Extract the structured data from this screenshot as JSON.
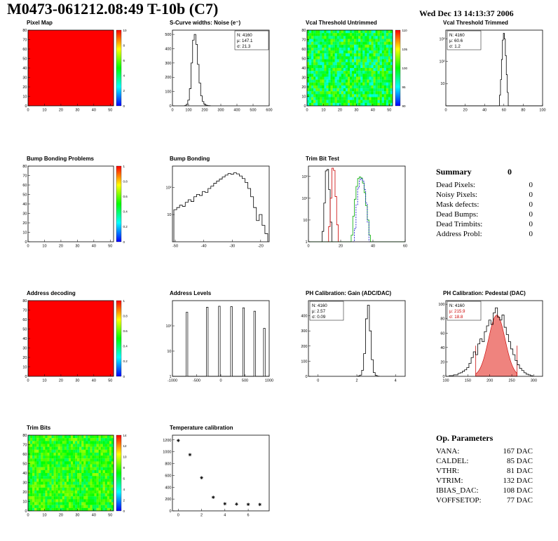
{
  "header": {
    "title": "M0473-061212.08:49 T-10b (C7)",
    "datetime": "Wed Dec 13 14:13:37 2006"
  },
  "summary": {
    "title": "Summary",
    "total": "0",
    "rows": [
      {
        "label": "Dead Pixels:",
        "value": "0"
      },
      {
        "label": "Noisy Pixels:",
        "value": "0"
      },
      {
        "label": "Mask defects:",
        "value": "0"
      },
      {
        "label": "Dead Bumps:",
        "value": "0"
      },
      {
        "label": "Dead Trimbits:",
        "value": "0"
      },
      {
        "label": "Address Probl:",
        "value": "0"
      }
    ]
  },
  "op_parameters": {
    "title": "Op. Parameters",
    "rows": [
      {
        "label": "VANA:",
        "value": "167 DAC"
      },
      {
        "label": "CALDEL:",
        "value": "85 DAC"
      },
      {
        "label": "VTHR:",
        "value": "81 DAC"
      },
      {
        "label": "VTRIM:",
        "value": "132 DAC"
      },
      {
        "label": "IBIAS_DAC:",
        "value": "108 DAC"
      },
      {
        "label": "VOFFSETOP:",
        "value": "77 DAC"
      }
    ]
  },
  "chart_data": [
    {
      "id": "pixel-map",
      "title": "Pixel Map",
      "type": "heatmap",
      "kind": "heatmap",
      "x_range": [
        0,
        52
      ],
      "x_ticks": [
        0,
        10,
        20,
        30,
        40,
        50
      ],
      "y_range": [
        0,
        80
      ],
      "y_ticks": [
        0,
        10,
        20,
        30,
        40,
        50,
        60,
        70,
        80
      ],
      "uniform": 1.0,
      "cticks": [
        "10",
        "8",
        "6",
        "4",
        "2",
        "0"
      ]
    },
    {
      "id": "scurve-noise",
      "title": "S-Curve widths: Noise (e⁻)",
      "type": "bar",
      "kind": "hist",
      "log": false,
      "x_range": [
        0,
        600
      ],
      "x_ticks": [
        0,
        100,
        200,
        300,
        400,
        500,
        600
      ],
      "y_range": [
        0,
        530
      ],
      "y_ticks": [
        0,
        100,
        200,
        300,
        400,
        500
      ],
      "x0": 80,
      "dx": 10,
      "ys": [
        2,
        10,
        40,
        120,
        300,
        460,
        500,
        430,
        290,
        160,
        70,
        30,
        12,
        5,
        2,
        1
      ],
      "stats": [
        [
          "N: 4160",
          "#000"
        ],
        [
          "μ: 147.1",
          "#000"
        ],
        [
          "σ: 21.3",
          "#000"
        ]
      ],
      "stats_pos": "right"
    },
    {
      "id": "vcal-untrimmed",
      "title": "Vcal Threshold Untrimmed",
      "type": "heatmap",
      "kind": "heatmap",
      "x_range": [
        0,
        52
      ],
      "x_ticks": [
        0,
        10,
        20,
        30,
        40,
        50
      ],
      "y_range": [
        0,
        80
      ],
      "y_ticks": [
        0,
        10,
        20,
        30,
        40,
        50,
        60,
        70,
        80
      ],
      "noise": {
        "mean": 0.45,
        "spread": 0.18,
        "seed": 42
      },
      "cticks": [
        "110",
        "105",
        "100",
        "95",
        "90"
      ]
    },
    {
      "id": "vcal-trimmed",
      "title": "Vcal Threshold Trimmed",
      "type": "bar",
      "kind": "hist",
      "log": true,
      "x_range": [
        0,
        100
      ],
      "x_ticks": [
        0,
        20,
        40,
        60,
        80,
        100
      ],
      "y_range": [
        1,
        2500
      ],
      "y_labels": [
        10,
        100,
        1000
      ],
      "x0": 55,
      "dx": 1,
      "ys": [
        1,
        3,
        15,
        120,
        900,
        1800,
        1000,
        180,
        25,
        4,
        1
      ],
      "extend": true,
      "stats": [
        [
          "N: 4160",
          "#000"
        ],
        [
          "μ: 60.6",
          "#000"
        ],
        [
          "σ: 1.2",
          "#000"
        ]
      ],
      "stats_pos": "left"
    },
    {
      "id": "bump-bonding-problems",
      "title": "Bump Bonding Problems",
      "type": "heatmap",
      "kind": "heatmap",
      "x_range": [
        0,
        52
      ],
      "x_ticks": [
        0,
        10,
        20,
        30,
        40,
        50
      ],
      "y_range": [
        0,
        80
      ],
      "y_ticks": [
        0,
        10,
        20,
        30,
        40,
        50,
        60,
        70,
        80
      ],
      "uniform": null,
      "cticks": [
        "1",
        "0.8",
        "0.6",
        "0.4",
        "0.2",
        "0"
      ]
    },
    {
      "id": "bump-bonding",
      "title": "Bump Bonding",
      "type": "bar",
      "kind": "hist",
      "log": true,
      "x_range": [
        -51,
        -17
      ],
      "x_ticks": [
        -50,
        -40,
        -30,
        -20
      ],
      "y_range": [
        1,
        600
      ],
      "y_labels": [
        10,
        100
      ],
      "x0": -50,
      "dx": 1,
      "ys": [
        15,
        18,
        22,
        20,
        28,
        35,
        30,
        45,
        55,
        50,
        70,
        65,
        90,
        110,
        140,
        170,
        200,
        240,
        280,
        320,
        300,
        340,
        310,
        260,
        210,
        150,
        90,
        45,
        18,
        6,
        10,
        4,
        2
      ]
    },
    {
      "id": "trim-bit-test",
      "title": "Trim Bit Test",
      "type": "bar",
      "kind": "multi",
      "log": true,
      "x_range": [
        0,
        60
      ],
      "x_ticks": [
        0,
        20,
        40,
        60
      ],
      "y_range": [
        1,
        3000
      ],
      "y_labels": [
        1,
        10,
        100,
        1000
      ],
      "series": [
        {
          "name": "trimbit-black",
          "color": "#000000",
          "x0": 8,
          "dx": 1,
          "ys": [
            1,
            3,
            60,
            1800,
            2100,
            250,
            8,
            1
          ]
        },
        {
          "name": "trimbit-red",
          "color": "#cc0000",
          "x0": 12,
          "dx": 1,
          "ys": [
            1,
            5,
            100,
            2400,
            1900,
            120,
            6,
            1
          ]
        },
        {
          "name": "trimbit-green",
          "color": "#00a800",
          "x0": 26,
          "dx": 1,
          "ys": [
            1,
            2,
            15,
            90,
            350,
            800,
            950,
            850,
            500,
            180,
            45,
            10,
            2,
            1
          ],
          "extend": true
        },
        {
          "name": "trimbit-blue",
          "color": "#0000cc",
          "x0": 28,
          "dx": 1,
          "ys": [
            1,
            4,
            50,
            300,
            700,
            800,
            600,
            250,
            60,
            8,
            1
          ],
          "dash": "2,1.5"
        }
      ]
    },
    {
      "id": "address-decoding",
      "title": "Address decoding",
      "type": "heatmap",
      "kind": "heatmap",
      "x_range": [
        0,
        52
      ],
      "x_ticks": [
        0,
        10,
        20,
        30,
        40,
        50
      ],
      "y_range": [
        0,
        80
      ],
      "y_ticks": [
        0,
        10,
        20,
        30,
        40,
        50,
        60,
        70,
        80
      ],
      "uniform": 1.0,
      "cticks": [
        "1",
        "0.8",
        "0.6",
        "0.4",
        "0.2",
        "0"
      ]
    },
    {
      "id": "address-levels",
      "title": "Address Levels",
      "type": "bar",
      "kind": "spikes",
      "log": true,
      "x_range": [
        -1000,
        1000
      ],
      "x_ticks": [
        -1000,
        -500,
        0,
        500,
        1000
      ],
      "y_range": [
        1,
        1000
      ],
      "y_labels": [
        1,
        10,
        100
      ],
      "spikes": [
        [
          -700,
          350
        ],
        [
          -280,
          550
        ],
        [
          -30,
          600
        ],
        [
          220,
          580
        ],
        [
          470,
          520
        ],
        [
          700,
          380
        ],
        [
          900,
          80
        ]
      ]
    },
    {
      "id": "ph-gain",
      "title": "PH Calibration: Gain (ADC/DAC)",
      "type": "bar",
      "kind": "hist",
      "log": false,
      "x_range": [
        -0.5,
        4.5
      ],
      "x_ticks": [
        0,
        2,
        4
      ],
      "y_range": [
        0,
        500
      ],
      "y_ticks": [
        0,
        100,
        200,
        300,
        400
      ],
      "x0": 2.1,
      "dx": 0.1,
      "ys": [
        2,
        8,
        40,
        150,
        380,
        470,
        300,
        110,
        25,
        6,
        1
      ],
      "stats": [
        [
          "N: 4160",
          "#000"
        ],
        [
          "μ: 2.57",
          "#000"
        ],
        [
          "σ: 0.09",
          "#000"
        ]
      ],
      "stats_pos": "left"
    },
    {
      "id": "ph-pedestal",
      "title": "PH Calibration: Pedestal (DAC)",
      "type": "bar",
      "kind": "hist",
      "log": false,
      "x_range": [
        100,
        320
      ],
      "x_ticks": [
        100,
        150,
        200,
        250,
        300
      ],
      "y_range": [
        0,
        105
      ],
      "y_ticks": [
        0,
        20,
        40,
        60,
        80,
        100
      ],
      "x0": 110,
      "dx": 5,
      "ys": [
        1,
        1,
        2,
        2,
        4,
        5,
        7,
        9,
        12,
        18,
        26,
        34,
        30,
        45,
        52,
        48,
        62,
        70,
        78,
        72,
        88,
        95,
        82,
        78,
        85,
        68,
        58,
        48,
        38,
        30,
        22,
        16,
        11,
        8,
        5,
        3,
        2,
        1
      ],
      "fit": {
        "mu": 215.9,
        "sigma": 18.8,
        "amp": 85,
        "span": [
          168,
          262
        ]
      },
      "stats": [
        [
          "N: 4160",
          "#000"
        ],
        [
          "μ: 215.9",
          "#cc0000"
        ],
        [
          "σ: 18.8",
          "#cc0000"
        ]
      ],
      "stats_pos": "left"
    },
    {
      "id": "trim-bits",
      "title": "Trim Bits",
      "type": "heatmap",
      "kind": "heatmap",
      "x_range": [
        0,
        52
      ],
      "x_ticks": [
        0,
        10,
        20,
        30,
        40,
        50
      ],
      "y_range": [
        0,
        80
      ],
      "y_ticks": [
        0,
        10,
        20,
        30,
        40,
        50,
        60,
        70,
        80
      ],
      "noise": {
        "mean": 0.52,
        "spread": 0.13,
        "seed": 7
      },
      "cticks": [
        "14",
        "12",
        "10",
        "8",
        "6",
        "4",
        "2",
        "0"
      ]
    },
    {
      "id": "temperature-calibration",
      "title": "Temperature calibration",
      "type": "scatter",
      "kind": "scatter",
      "log": false,
      "x_range": [
        -0.5,
        7.8
      ],
      "x_ticks": [
        0,
        2,
        4,
        6
      ],
      "y_range": [
        0,
        1280
      ],
      "y_ticks": [
        0,
        200,
        400,
        600,
        800,
        1000,
        1200
      ],
      "points": [
        [
          0,
          1190
        ],
        [
          1,
          950
        ],
        [
          2,
          560
        ],
        [
          3,
          230
        ],
        [
          4,
          120
        ],
        [
          5,
          115
        ],
        [
          6,
          110
        ],
        [
          7,
          108
        ]
      ]
    }
  ]
}
